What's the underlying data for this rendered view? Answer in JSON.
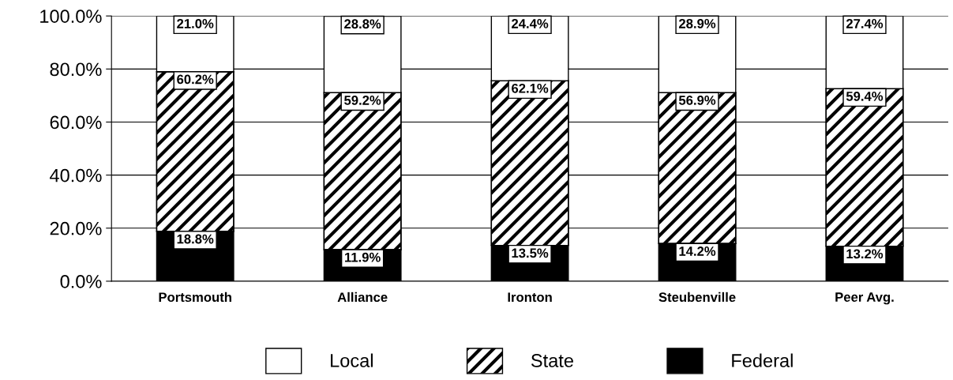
{
  "chart_data": {
    "type": "bar",
    "stacked": true,
    "categories": [
      "Portsmouth",
      "Alliance",
      "Ironton",
      "Steubenville",
      "Peer Avg."
    ],
    "series": [
      {
        "name": "Federal",
        "color": "#000000",
        "values": [
          18.8,
          11.9,
          13.5,
          14.2,
          13.2
        ],
        "value_labels": [
          "18.8%",
          "11.9%",
          "13.5%",
          "14.2%",
          "13.2%"
        ]
      },
      {
        "name": "State",
        "color": "#000000",
        "values": [
          60.2,
          59.2,
          62.1,
          56.9,
          59.4
        ],
        "value_labels": [
          "60.2%",
          "59.2%",
          "62.1%",
          "56.9%",
          "59.4%"
        ]
      },
      {
        "name": "Local",
        "color": "#ffffff",
        "values": [
          21.0,
          28.8,
          24.4,
          28.9,
          27.4
        ],
        "value_labels": [
          "21.0%",
          "28.8%",
          "24.4%",
          "28.9%",
          "27.4%"
        ]
      }
    ],
    "ylim": [
      0,
      100
    ],
    "yticks": [
      {
        "value": 0,
        "label": "0.0%"
      },
      {
        "value": 20,
        "label": "20.0%"
      },
      {
        "value": 40,
        "label": "40.0%"
      },
      {
        "value": 60,
        "label": "60.0%"
      },
      {
        "value": 80,
        "label": "80.0%"
      },
      {
        "value": 100,
        "label": "100.0%"
      }
    ],
    "grid": "y",
    "legend": "bottom"
  }
}
